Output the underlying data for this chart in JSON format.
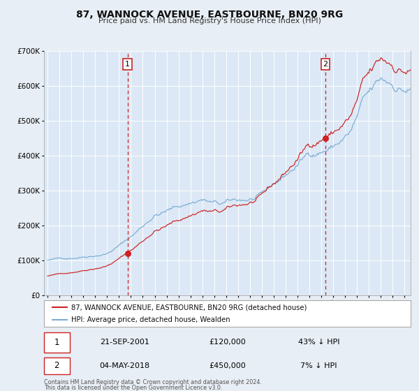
{
  "title": "87, WANNOCK AVENUE, EASTBOURNE, BN20 9RG",
  "subtitle": "Price paid vs. HM Land Registry's House Price Index (HPI)",
  "bg_color": "#e8eef5",
  "plot_bg_color": "#dce8f5",
  "hpi_color": "#7aadd4",
  "price_color": "#cc2222",
  "ylim": [
    0,
    700000
  ],
  "yticks": [
    0,
    100000,
    200000,
    300000,
    400000,
    500000,
    600000,
    700000
  ],
  "xlim_start": 1994.7,
  "xlim_end": 2025.5,
  "sale1_year": 2001.72,
  "sale1_price": 120000,
  "sale2_year": 2018.34,
  "sale2_price": 450000,
  "legend_house": "87, WANNOCK AVENUE, EASTBOURNE, BN20 9RG (detached house)",
  "legend_hpi": "HPI: Average price, detached house, Wealden",
  "sale1_date": "21-SEP-2001",
  "sale1_amount": "£120,000",
  "sale1_pct": "43% ↓ HPI",
  "sale2_date": "04-MAY-2018",
  "sale2_amount": "£450,000",
  "sale2_pct": "7% ↓ HPI",
  "footer1": "Contains HM Land Registry data © Crown copyright and database right 2024.",
  "footer2": "This data is licensed under the Open Government Licence v3.0."
}
